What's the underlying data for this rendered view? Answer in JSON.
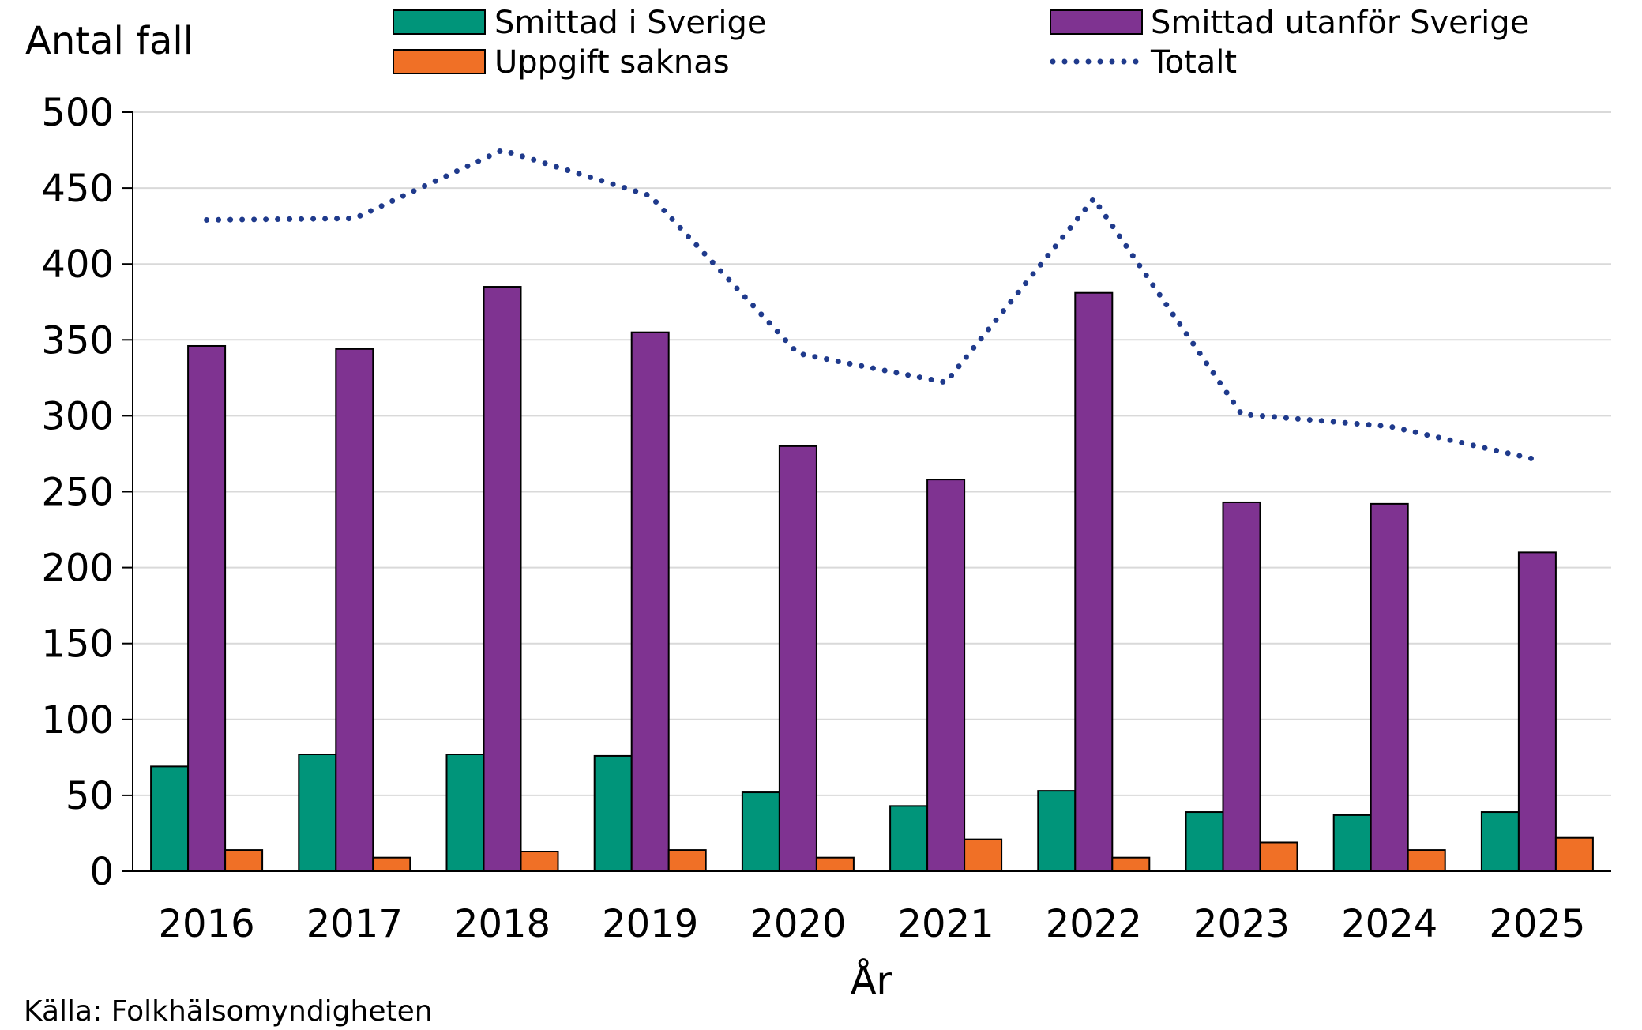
{
  "chart_data": {
    "type": "bar",
    "ylabel": "Antal fall",
    "xlabel": "År",
    "source": "Källa: Folkhälsomyndigheten",
    "categories": [
      "2016",
      "2017",
      "2018",
      "2019",
      "2020",
      "2021",
      "2022",
      "2023",
      "2024",
      "2025"
    ],
    "ylim": [
      0,
      500
    ],
    "yticks": [
      0,
      50,
      100,
      150,
      200,
      250,
      300,
      350,
      400,
      450,
      500
    ],
    "grid": true,
    "legend_position": "top",
    "series": [
      {
        "name": "Smittad i Sverige",
        "type": "bar",
        "color": "#00957a",
        "values": [
          69,
          77,
          77,
          76,
          52,
          43,
          53,
          39,
          37,
          39
        ]
      },
      {
        "name": "Smittad utanför Sverige",
        "type": "bar",
        "color": "#7f3391",
        "values": [
          346,
          344,
          385,
          355,
          280,
          258,
          381,
          243,
          242,
          210
        ]
      },
      {
        "name": "Uppgift saknas",
        "type": "bar",
        "color": "#f07026",
        "values": [
          14,
          9,
          13,
          14,
          9,
          21,
          9,
          19,
          14,
          22
        ]
      },
      {
        "name": "Totalt",
        "type": "line",
        "style": "dotted",
        "color": "#1f3a8c",
        "values": [
          429,
          430,
          475,
          445,
          341,
          322,
          443,
          301,
          293,
          271
        ]
      }
    ]
  }
}
